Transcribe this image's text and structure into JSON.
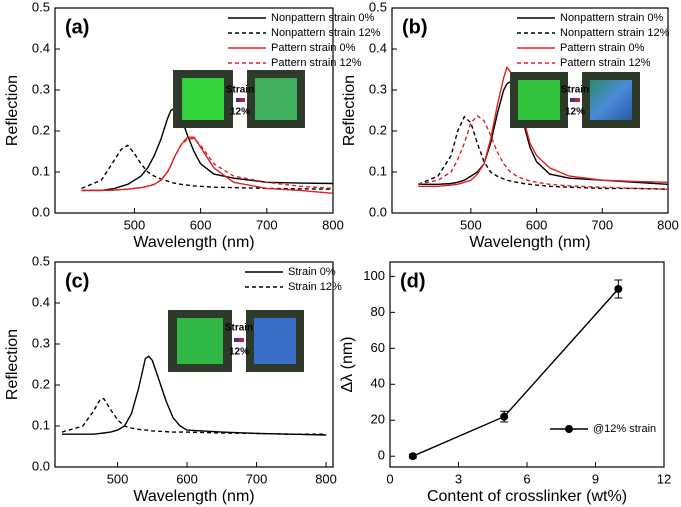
{
  "chart_data": [
    {
      "type": "line",
      "panel_label": "(a)",
      "xlabel": "Wavelength (nm)",
      "ylabel": "Reflection",
      "xlim": [
        380,
        800
      ],
      "ylim": [
        0,
        0.5
      ],
      "xticks": [
        500,
        600,
        700,
        800
      ],
      "yticks": [
        {
          "value": 0,
          "label": "0.0"
        },
        0.1,
        0.2,
        0.3,
        0.4,
        0.5
      ],
      "legend": "upper right",
      "inset_labels": [
        "Strain",
        "12%"
      ],
      "x": [
        420,
        450,
        470,
        480,
        490,
        500,
        510,
        520,
        530,
        540,
        550,
        555,
        560,
        570,
        580,
        590,
        600,
        620,
        650,
        700,
        750,
        800
      ],
      "series": [
        {
          "name": "Nonpattern strain 0%",
          "color": "#000000",
          "linestyle": "solid",
          "values": [
            0.055,
            0.055,
            0.06,
            0.065,
            0.07,
            0.08,
            0.09,
            0.11,
            0.14,
            0.18,
            0.23,
            0.25,
            0.255,
            0.235,
            0.19,
            0.15,
            0.12,
            0.095,
            0.085,
            0.075,
            0.073,
            0.072
          ]
        },
        {
          "name": "Nonpattern strain 12%",
          "color": "#000000",
          "linestyle": "dashed",
          "values": [
            0.06,
            0.08,
            0.13,
            0.155,
            0.165,
            0.145,
            0.12,
            0.1,
            0.09,
            0.083,
            0.078,
            0.075,
            0.073,
            0.07,
            0.068,
            0.066,
            0.065,
            0.063,
            0.062,
            0.06,
            0.059,
            0.058
          ]
        },
        {
          "name": "Pattern strain 0%",
          "color": "#e02020",
          "linestyle": "solid",
          "values": [
            0.055,
            0.055,
            0.056,
            0.057,
            0.058,
            0.06,
            0.062,
            0.065,
            0.07,
            0.08,
            0.1,
            0.115,
            0.135,
            0.165,
            0.185,
            0.185,
            0.16,
            0.11,
            0.075,
            0.06,
            0.055,
            0.048
          ]
        },
        {
          "name": "Pattern strain 12%",
          "color": "#e02020",
          "linestyle": "dashed",
          "values": [
            0.055,
            0.055,
            0.056,
            0.057,
            0.058,
            0.06,
            0.062,
            0.065,
            0.07,
            0.08,
            0.1,
            0.115,
            0.135,
            0.165,
            0.18,
            0.182,
            0.165,
            0.12,
            0.09,
            0.075,
            0.065,
            0.06
          ]
        }
      ]
    },
    {
      "type": "line",
      "panel_label": "(b)",
      "xlabel": "Wavelength (nm)",
      "ylabel": "Reflection",
      "xlim": [
        380,
        800
      ],
      "ylim": [
        0,
        0.5
      ],
      "xticks": [
        500,
        600,
        700,
        800
      ],
      "yticks": [
        {
          "value": 0,
          "label": "0.0"
        },
        0.1,
        0.2,
        0.3,
        0.4,
        0.5
      ],
      "legend": "upper right",
      "inset_labels": [
        "Strain",
        "12%"
      ],
      "x": [
        420,
        450,
        470,
        480,
        490,
        500,
        510,
        520,
        530,
        540,
        550,
        555,
        560,
        570,
        580,
        590,
        600,
        620,
        650,
        700,
        750,
        800
      ],
      "series": [
        {
          "name": "Nonpattern strain 0%",
          "color": "#000000",
          "linestyle": "solid",
          "values": [
            0.07,
            0.07,
            0.072,
            0.075,
            0.08,
            0.09,
            0.1,
            0.12,
            0.17,
            0.24,
            0.3,
            0.315,
            0.32,
            0.29,
            0.22,
            0.16,
            0.125,
            0.095,
            0.085,
            0.08,
            0.075,
            0.07
          ]
        },
        {
          "name": "Nonpattern strain 12%",
          "color": "#000000",
          "linestyle": "dashed",
          "values": [
            0.07,
            0.09,
            0.14,
            0.2,
            0.235,
            0.22,
            0.17,
            0.125,
            0.1,
            0.09,
            0.083,
            0.08,
            0.078,
            0.075,
            0.072,
            0.07,
            0.068,
            0.065,
            0.063,
            0.06,
            0.06,
            0.058
          ]
        },
        {
          "name": "Pattern strain 0%",
          "color": "#e02020",
          "linestyle": "solid",
          "values": [
            0.065,
            0.065,
            0.068,
            0.07,
            0.075,
            0.08,
            0.095,
            0.12,
            0.18,
            0.26,
            0.33,
            0.355,
            0.345,
            0.3,
            0.23,
            0.17,
            0.14,
            0.11,
            0.09,
            0.08,
            0.077,
            0.075
          ]
        },
        {
          "name": "Pattern strain 12%",
          "color": "#e02020",
          "linestyle": "dashed",
          "values": [
            0.07,
            0.08,
            0.1,
            0.13,
            0.17,
            0.22,
            0.237,
            0.225,
            0.19,
            0.15,
            0.12,
            0.11,
            0.1,
            0.09,
            0.083,
            0.078,
            0.075,
            0.07,
            0.066,
            0.063,
            0.06,
            0.058
          ]
        }
      ]
    },
    {
      "type": "line",
      "panel_label": "(c)",
      "xlabel": "Wavelength (nm)",
      "ylabel": "Reflection",
      "xlim": [
        410,
        810
      ],
      "ylim": [
        0,
        0.5
      ],
      "xticks": [
        500,
        600,
        700,
        800
      ],
      "yticks": [
        {
          "value": 0,
          "label": "0.0"
        },
        0.1,
        0.2,
        0.3,
        0.4,
        0.5
      ],
      "legend": "upper right",
      "inset_labels": [
        "Strain",
        "12%"
      ],
      "x": [
        420,
        450,
        465,
        475,
        480,
        490,
        500,
        510,
        520,
        530,
        540,
        545,
        550,
        560,
        570,
        580,
        590,
        600,
        650,
        700,
        750,
        800
      ],
      "series": [
        {
          "name": "Strain 0%",
          "color": "#000000",
          "linestyle": "solid",
          "values": [
            0.08,
            0.08,
            0.08,
            0.082,
            0.083,
            0.085,
            0.09,
            0.1,
            0.13,
            0.19,
            0.265,
            0.27,
            0.26,
            0.21,
            0.16,
            0.12,
            0.1,
            0.09,
            0.085,
            0.082,
            0.08,
            0.078
          ]
        },
        {
          "name": "Strain 12%",
          "color": "#000000",
          "linestyle": "dashed",
          "values": [
            0.085,
            0.1,
            0.135,
            0.165,
            0.167,
            0.14,
            0.115,
            0.1,
            0.095,
            0.092,
            0.09,
            0.09,
            0.088,
            0.087,
            0.086,
            0.085,
            0.085,
            0.085,
            0.083,
            0.082,
            0.08,
            0.08
          ]
        }
      ]
    },
    {
      "type": "line",
      "panel_label": "(d)",
      "xlabel": "Content of crosslinker (wt%)",
      "ylabel": "Δλ (nm)",
      "xlim": [
        0,
        12
      ],
      "ylim": [
        -6,
        108
      ],
      "xticks": [
        0,
        3,
        6,
        9,
        12
      ],
      "yticks": [
        0,
        20,
        40,
        60,
        80,
        100
      ],
      "legend": "lower right",
      "markers": true,
      "x": [
        1,
        5,
        10
      ],
      "series": [
        {
          "name": "@12% strain",
          "color": "#000000",
          "linestyle": "solid",
          "values": [
            0,
            22,
            93
          ],
          "errors": [
            1,
            3,
            5
          ]
        }
      ]
    }
  ]
}
